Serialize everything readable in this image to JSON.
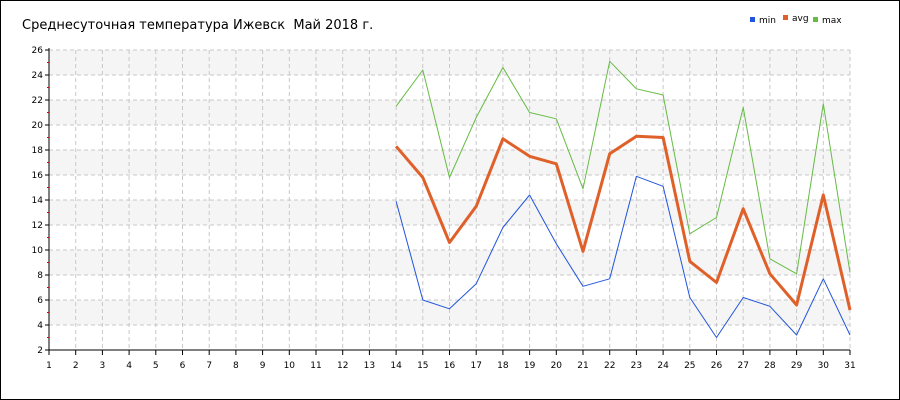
{
  "chart_data": {
    "type": "line",
    "title": "Среднесуточная температура Ижевск  Май 2018 г.",
    "xlabel": "",
    "ylabel": "",
    "x": [
      1,
      2,
      3,
      4,
      5,
      6,
      7,
      8,
      9,
      10,
      11,
      12,
      13,
      14,
      15,
      16,
      17,
      18,
      19,
      20,
      21,
      22,
      23,
      24,
      25,
      26,
      27,
      28,
      29,
      30,
      31
    ],
    "xlim": [
      1,
      31
    ],
    "ylim": [
      2,
      26
    ],
    "yticks": [
      2,
      4,
      6,
      8,
      10,
      12,
      14,
      16,
      18,
      20,
      22,
      24,
      26
    ],
    "grid": true,
    "legend_position": "top-right",
    "series": [
      {
        "name": "min",
        "color": "#2255dd",
        "x": [
          14,
          15,
          16,
          17,
          18,
          19,
          20,
          21,
          22,
          23,
          24,
          25,
          26,
          27,
          28,
          29,
          30,
          31
        ],
        "values": [
          13.9,
          6.0,
          5.3,
          7.3,
          11.8,
          14.4,
          10.5,
          7.1,
          7.7,
          15.9,
          15.1,
          6.2,
          3.0,
          6.2,
          5.5,
          3.2,
          7.7,
          3.2
        ]
      },
      {
        "name": "avg",
        "color": "#e0602a",
        "x": [
          14,
          15,
          16,
          17,
          18,
          19,
          20,
          21,
          22,
          23,
          24,
          25,
          26,
          27,
          28,
          29,
          30,
          31
        ],
        "values": [
          18.3,
          15.8,
          10.6,
          13.5,
          18.9,
          17.5,
          16.9,
          9.9,
          17.7,
          19.1,
          19.0,
          9.1,
          7.4,
          13.3,
          8.1,
          5.6,
          14.4,
          5.2
        ]
      },
      {
        "name": "max",
        "color": "#66bb44",
        "x": [
          14,
          15,
          16,
          17,
          18,
          19,
          20,
          21,
          22,
          23,
          24,
          25,
          26,
          27,
          28,
          29,
          30,
          31
        ],
        "values": [
          21.5,
          24.4,
          15.8,
          20.6,
          24.6,
          21.0,
          20.5,
          14.9,
          25.1,
          22.9,
          22.4,
          11.3,
          12.6,
          21.4,
          9.3,
          8.1,
          21.7,
          8.2
        ]
      }
    ]
  }
}
